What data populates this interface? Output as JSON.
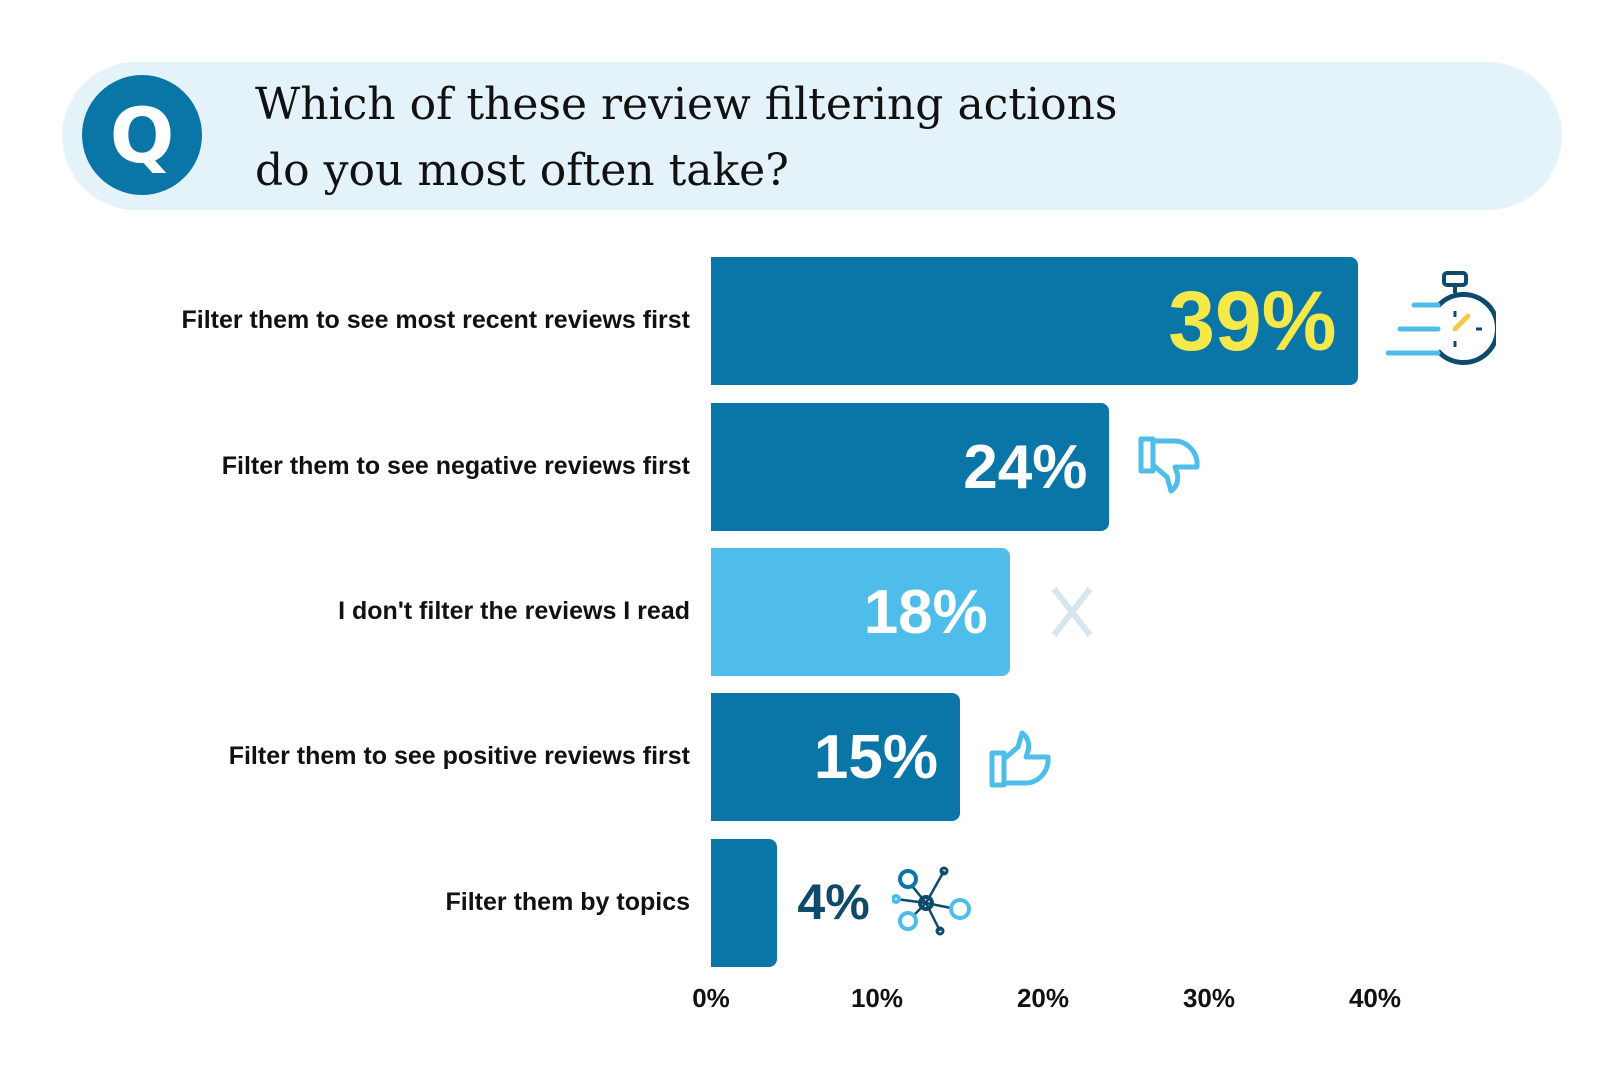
{
  "question_badge": "Q",
  "title": "Which of these review filtering actions\ndo you most often take?",
  "colors": {
    "dark_bar": "#0a76a8",
    "light_bar": "#4fbde9",
    "highlight": "#f5e94a",
    "navy": "#0d4a6b",
    "pill": "#e4f3f9"
  },
  "chart_data": {
    "type": "bar",
    "orientation": "horizontal",
    "title": "Which of these review filtering actions do you most often take?",
    "categories": [
      "Filter them to see most recent reviews first",
      "Filter them to see negative reviews first",
      "I don't filter the reviews I read",
      "Filter them to see positive reviews first",
      "Filter them by topics"
    ],
    "values": [
      39,
      24,
      18,
      15,
      4
    ],
    "value_labels": [
      "39%",
      "24%",
      "18%",
      "15%",
      "4%"
    ],
    "icons": [
      "stopwatch-icon",
      "thumbs-down-icon",
      "x-icon",
      "thumbs-up-icon",
      "network-icon"
    ],
    "xlim": [
      0,
      40
    ],
    "xticks": [
      "0%",
      "10%",
      "20%",
      "30%",
      "40%"
    ],
    "xlabel": "",
    "ylabel": "",
    "grid": false
  }
}
